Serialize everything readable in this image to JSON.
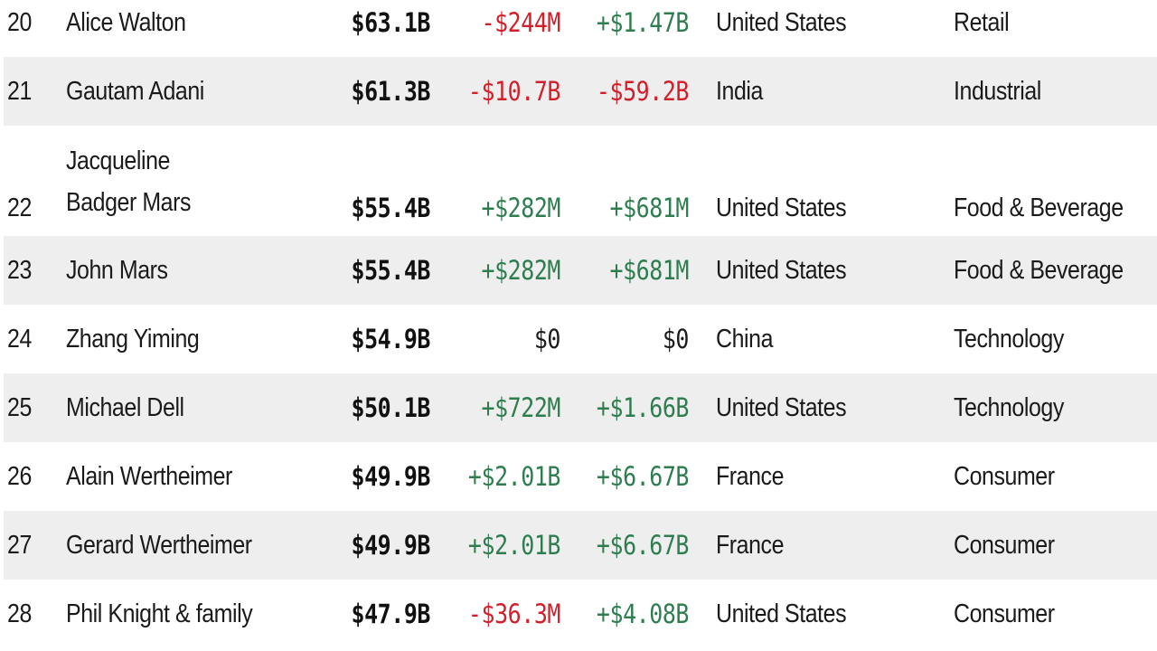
{
  "rows": [
    {
      "rank": "20",
      "name": "Alice Walton",
      "net_worth": "$63.1B",
      "last_change": "-$244M",
      "ytd_change": "+$1.47B",
      "country": "United States",
      "industry": "Retail"
    },
    {
      "rank": "21",
      "name": "Gautam Adani",
      "net_worth": "$61.3B",
      "last_change": "-$10.7B",
      "ytd_change": "-$59.2B",
      "country": "India",
      "industry": "Industrial"
    },
    {
      "rank": "22",
      "name": "Jacqueline Badger Mars",
      "net_worth": "$55.4B",
      "last_change": "+$282M",
      "ytd_change": "+$681M",
      "country": "United States",
      "industry": "Food & Beverage"
    },
    {
      "rank": "23",
      "name": "John Mars",
      "net_worth": "$55.4B",
      "last_change": "+$282M",
      "ytd_change": "+$681M",
      "country": "United States",
      "industry": "Food & Beverage"
    },
    {
      "rank": "24",
      "name": "Zhang Yiming",
      "net_worth": "$54.9B",
      "last_change": "$0",
      "ytd_change": "$0",
      "country": "China",
      "industry": "Technology"
    },
    {
      "rank": "25",
      "name": "Michael Dell",
      "net_worth": "$50.1B",
      "last_change": "+$722M",
      "ytd_change": "+$1.66B",
      "country": "United States",
      "industry": "Technology"
    },
    {
      "rank": "26",
      "name": "Alain Wertheimer",
      "net_worth": "$49.9B",
      "last_change": "+$2.01B",
      "ytd_change": "+$6.67B",
      "country": "France",
      "industry": "Consumer"
    },
    {
      "rank": "27",
      "name": "Gerard Wertheimer",
      "net_worth": "$49.9B",
      "last_change": "+$2.01B",
      "ytd_change": "+$6.67B",
      "country": "France",
      "industry": "Consumer"
    },
    {
      "rank": "28",
      "name": "Phil Knight & family",
      "net_worth": "$47.9B",
      "last_change": "-$36.3M",
      "ytd_change": "+$4.08B",
      "country": "United States",
      "industry": "Consumer"
    }
  ],
  "colors": {
    "positive": "#2e7d4f",
    "negative": "#d21f2a",
    "neutral": "#1a1a1a",
    "row_alt_background": "#eeeeee"
  }
}
